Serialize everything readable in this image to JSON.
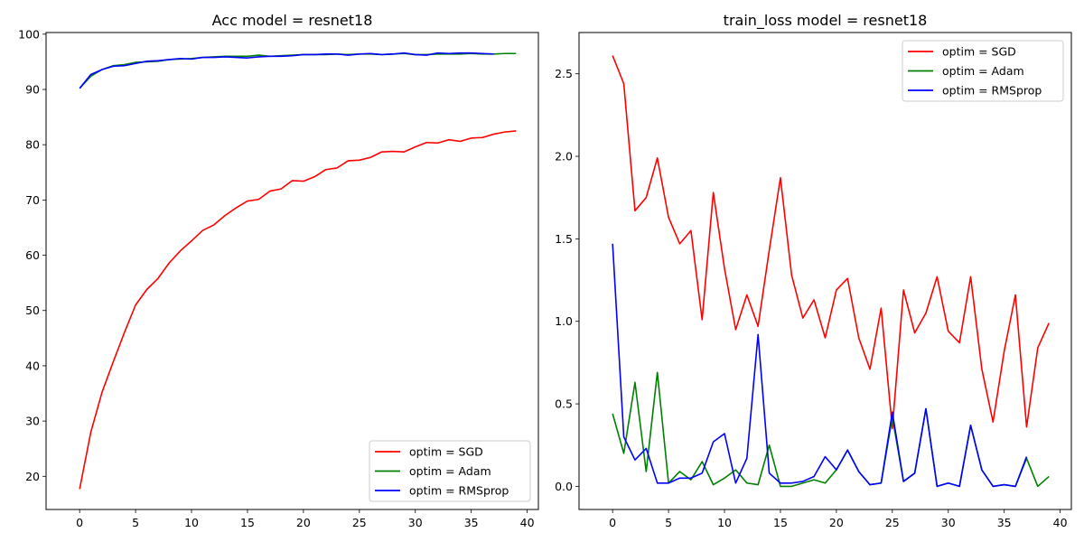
{
  "chart_data": [
    {
      "type": "line",
      "title": "Acc model = resnet18",
      "xlabel": "",
      "ylabel": "",
      "xlim": [
        -3,
        41
      ],
      "ylim": [
        14,
        100.3
      ],
      "xticks": [
        0,
        5,
        10,
        15,
        20,
        25,
        30,
        35,
        40
      ],
      "yticks": [
        20,
        30,
        40,
        50,
        60,
        70,
        80,
        90,
        100
      ],
      "ytick_format": "int",
      "grid": false,
      "legend_position": "lower-right",
      "series": [
        {
          "name": "optim = SGD",
          "color": "#ff0000",
          "x": [
            0,
            1,
            2,
            3,
            4,
            5,
            6,
            7,
            8,
            9,
            10,
            11,
            12,
            13,
            14,
            15,
            16,
            17,
            18,
            19,
            20,
            21,
            22,
            23,
            24,
            25,
            26,
            27,
            28,
            29,
            30,
            31,
            32,
            33,
            34,
            35,
            36,
            37,
            38,
            39
          ],
          "y": [
            17.7,
            28.0,
            35.2,
            40.7,
            46.0,
            51.0,
            53.8,
            55.8,
            58.6,
            60.8,
            62.6,
            64.5,
            65.5,
            67.2,
            68.6,
            69.8,
            70.1,
            71.6,
            72.0,
            73.5,
            73.4,
            74.2,
            75.5,
            75.8,
            77.1,
            77.2,
            77.7,
            78.7,
            78.8,
            78.7,
            79.6,
            80.4,
            80.3,
            80.9,
            80.6,
            81.2,
            81.3,
            81.9,
            82.3,
            82.5
          ]
        },
        {
          "name": "optim = Adam",
          "color": "#008000",
          "x": [
            0,
            1,
            2,
            3,
            4,
            5,
            6,
            7,
            8,
            9,
            10,
            11,
            12,
            13,
            14,
            15,
            16,
            17,
            18,
            19,
            20,
            21,
            22,
            23,
            24,
            25,
            26,
            27,
            28,
            29,
            30,
            31,
            32,
            33,
            34,
            35,
            36,
            37,
            38,
            39
          ],
          "y": [
            90.2,
            92.4,
            93.6,
            94.3,
            94.5,
            94.9,
            95.0,
            95.1,
            95.4,
            95.5,
            95.6,
            95.8,
            95.9,
            96.0,
            96.0,
            96.0,
            96.2,
            96.0,
            96.1,
            96.2,
            96.3,
            96.3,
            96.3,
            96.4,
            96.3,
            96.4,
            96.4,
            96.3,
            96.4,
            96.5,
            96.3,
            96.3,
            96.4,
            96.4,
            96.4,
            96.5,
            96.4,
            96.4,
            96.5,
            96.5
          ]
        },
        {
          "name": "optim = RMSprop",
          "color": "#0000ff",
          "x": [
            0,
            1,
            2,
            3,
            4,
            5,
            6,
            7,
            8,
            9,
            10,
            11,
            12,
            13,
            14,
            15,
            16,
            17,
            18,
            19,
            20,
            21,
            22,
            23,
            24,
            25,
            26,
            27,
            28,
            29,
            30,
            31,
            32,
            33,
            34,
            35,
            36,
            37
          ],
          "y": [
            90.2,
            92.7,
            93.6,
            94.2,
            94.3,
            94.7,
            95.1,
            95.2,
            95.4,
            95.6,
            95.5,
            95.8,
            95.8,
            95.9,
            95.8,
            95.7,
            95.9,
            96.0,
            96.0,
            96.1,
            96.3,
            96.3,
            96.4,
            96.4,
            96.2,
            96.4,
            96.5,
            96.3,
            96.4,
            96.6,
            96.3,
            96.2,
            96.6,
            96.5,
            96.6,
            96.6,
            96.5,
            96.4
          ]
        }
      ]
    },
    {
      "type": "line",
      "title": "train_loss model = resnet18",
      "xlabel": "",
      "ylabel": "",
      "xlim": [
        -3,
        41
      ],
      "ylim": [
        -0.14,
        2.75
      ],
      "xticks": [
        0,
        5,
        10,
        15,
        20,
        25,
        30,
        35,
        40
      ],
      "yticks": [
        0.0,
        0.5,
        1.0,
        1.5,
        2.0,
        2.5
      ],
      "ytick_format": "1dp",
      "grid": false,
      "legend_position": "upper-right",
      "series": [
        {
          "name": "optim = SGD",
          "color": "#ff0000",
          "x": [
            0,
            1,
            2,
            3,
            4,
            5,
            6,
            7,
            8,
            9,
            10,
            11,
            12,
            13,
            14,
            15,
            16,
            17,
            18,
            19,
            20,
            21,
            22,
            23,
            24,
            25,
            26,
            27,
            28,
            29,
            30,
            31,
            32,
            33,
            34,
            35,
            36,
            37,
            38,
            39
          ],
          "y": [
            2.61,
            2.44,
            1.67,
            1.75,
            1.99,
            1.63,
            1.47,
            1.55,
            1.01,
            1.78,
            1.32,
            0.95,
            1.16,
            0.97,
            1.43,
            1.87,
            1.28,
            1.02,
            1.13,
            0.9,
            1.19,
            1.26,
            0.9,
            0.71,
            1.08,
            0.35,
            1.19,
            0.93,
            1.05,
            1.27,
            0.94,
            0.87,
            1.27,
            0.71,
            0.39,
            0.82,
            1.16,
            0.36,
            0.84,
            0.99
          ]
        },
        {
          "name": "optim = Adam",
          "color": "#008000",
          "x": [
            0,
            1,
            2,
            3,
            4,
            5,
            6,
            7,
            8,
            9,
            10,
            11,
            12,
            13,
            14,
            15,
            16,
            17,
            18,
            19,
            20,
            21,
            22,
            23,
            24,
            25,
            26,
            27,
            28,
            29,
            30,
            31,
            32,
            33,
            34,
            35,
            36,
            37,
            38,
            39
          ],
          "y": [
            0.44,
            0.2,
            0.63,
            0.09,
            0.69,
            0.02,
            0.09,
            0.04,
            0.15,
            0.01,
            0.05,
            0.1,
            0.02,
            0.01,
            0.25,
            0.0,
            0.0,
            0.02,
            0.04,
            0.02,
            0.1,
            0.22,
            0.09,
            0.01,
            0.02,
            0.42,
            0.03,
            0.08,
            0.47,
            0.0,
            0.02,
            0.0,
            0.37,
            0.1,
            0.0,
            0.01,
            0.0,
            0.17,
            0.0,
            0.06
          ]
        },
        {
          "name": "optim = RMSprop",
          "color": "#0000ff",
          "x": [
            0,
            1,
            2,
            3,
            4,
            5,
            6,
            7,
            8,
            9,
            10,
            11,
            12,
            13,
            14,
            15,
            16,
            17,
            18,
            19,
            20,
            21,
            22,
            23,
            24,
            25,
            26,
            27,
            28,
            29,
            30,
            31,
            32,
            33,
            34,
            35,
            36,
            37
          ],
          "y": [
            1.47,
            0.3,
            0.16,
            0.23,
            0.02,
            0.02,
            0.05,
            0.05,
            0.08,
            0.27,
            0.32,
            0.02,
            0.17,
            0.92,
            0.08,
            0.02,
            0.02,
            0.03,
            0.06,
            0.18,
            0.1,
            0.22,
            0.09,
            0.01,
            0.02,
            0.45,
            0.03,
            0.08,
            0.47,
            0.0,
            0.02,
            0.0,
            0.37,
            0.1,
            0.0,
            0.01,
            0.0,
            0.18
          ]
        }
      ]
    }
  ]
}
